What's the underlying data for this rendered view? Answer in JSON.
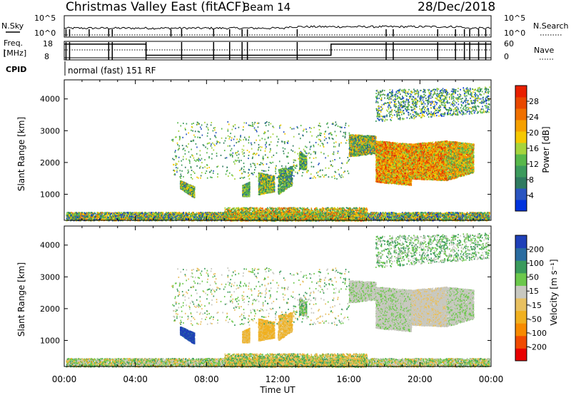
{
  "header": {
    "title": "Christmas Valley East (fitACF)",
    "beam": "Beam 14",
    "date": "28/Dec/2018"
  },
  "colors": {
    "power_scale": [
      "#0033dd",
      "#2a55c0",
      "#2f7a60",
      "#3c9a5c",
      "#58b84a",
      "#a6d43c",
      "#f5c800",
      "#f5a000",
      "#ef7000",
      "#e84800",
      "#e82000"
    ],
    "velocity_scale": [
      "#e80000",
      "#f04a00",
      "#f78a00",
      "#f0b020",
      "#e8c060",
      "#c8c8c0",
      "#6cc84c",
      "#3a9a5c",
      "#2a6ca0",
      "#1f40b8"
    ],
    "ground_scatter": "#c8c8c0"
  },
  "chart_data": [
    {
      "type": "line",
      "name": "status-panel-nsky",
      "ylabel": "N.Sky",
      "y_ticks": [
        "10^5",
        "10^0"
      ],
      "right_label": "N.Search",
      "right_ticks": [
        "10^5",
        "10^0"
      ],
      "x_range_hours": [
        0,
        24
      ]
    },
    {
      "type": "line",
      "name": "status-panel-freq",
      "ylabel_line1": "Freq.",
      "ylabel_line2": "[MHz]",
      "y_ticks": [
        "18",
        "8"
      ],
      "right_label": "Nave",
      "right_ticks": [
        "60",
        "0"
      ],
      "frequency_steps": [
        [
          0,
          16.5
        ],
        [
          4.6,
          10.5
        ],
        [
          15.0,
          16.5
        ],
        [
          24,
          16.5
        ]
      ]
    },
    {
      "type": "heatmap",
      "name": "power",
      "cpid_label": "CPID",
      "cpid_text": "normal (fast) 151 RF",
      "ylabel": "Slant Range [km]",
      "y_ticks": [
        1000,
        2000,
        3000,
        4000
      ],
      "ylim": [
        180,
        4600
      ],
      "x_ticks": [
        "00:00",
        "04:00",
        "08:00",
        "12:00",
        "16:00",
        "20:00",
        "00:00"
      ],
      "x_range_hours": [
        0,
        24
      ],
      "colorbar_label": "Power [dB]",
      "colorbar_ticks": [
        "4",
        "8",
        "12",
        "16",
        "20",
        "24",
        "28"
      ],
      "colorbar_range": [
        0,
        32
      ]
    },
    {
      "type": "heatmap",
      "name": "velocity",
      "ylabel": "Slant Range [km]",
      "y_ticks": [
        1000,
        2000,
        3000,
        4000
      ],
      "ylim": [
        180,
        4600
      ],
      "x_ticks": [
        "00:00",
        "04:00",
        "08:00",
        "12:00",
        "16:00",
        "20:00",
        "00:00"
      ],
      "xlabel": "Time UT",
      "colorbar_label": "Velocity [m s⁻¹]",
      "colorbar_ticks": [
        "200",
        "100",
        "50",
        "15",
        "-15",
        "-50",
        "-100",
        "-200"
      ]
    }
  ]
}
